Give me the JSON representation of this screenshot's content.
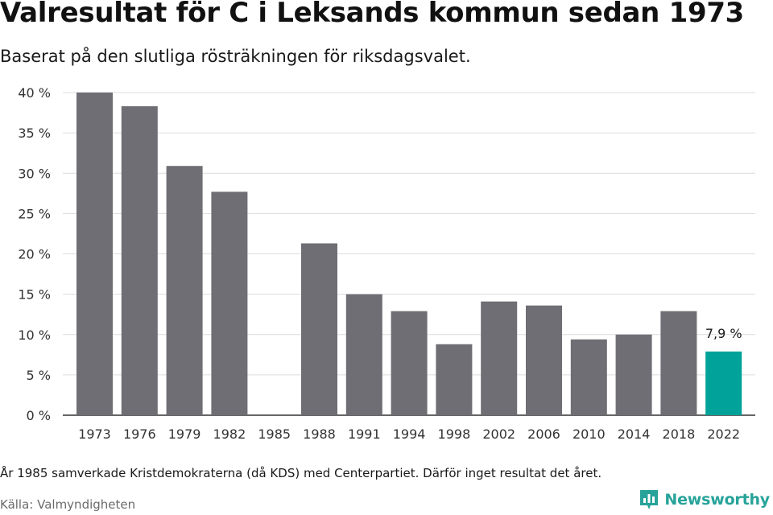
{
  "title": "Valresultat för C i Leksands kommun sedan 1973",
  "subtitle": "Baserat på den slutliga rösträkningen för riksdagsvalet.",
  "footnote": "År 1985 samverkade Kristdemokraterna (då KDS) med Centerpartiet. Därför inget resultat det året.",
  "source": "Källa: Valmyndigheten",
  "brand": {
    "name": "Newsworthy",
    "color": "#27a39a",
    "icon": "newsworthy-logo-icon"
  },
  "colors": {
    "bar": "#6f6e74",
    "highlight": "#00a29a",
    "grid": "#dcdcdc",
    "axis": "#333333"
  },
  "chart_data": {
    "type": "bar",
    "categories": [
      "1973",
      "1976",
      "1979",
      "1982",
      "1985",
      "1988",
      "1991",
      "1994",
      "1998",
      "2002",
      "2006",
      "2010",
      "2014",
      "2018",
      "2022"
    ],
    "values": [
      40.0,
      38.3,
      30.9,
      27.7,
      null,
      21.3,
      15.0,
      12.9,
      8.8,
      14.1,
      13.6,
      9.4,
      10.0,
      12.9,
      7.9
    ],
    "highlight_category": "2022",
    "data_labels": {
      "2022": "7,9 %"
    },
    "yticks": [
      0,
      5,
      10,
      15,
      20,
      25,
      30,
      35,
      40
    ],
    "ytick_labels": [
      "0 %",
      "5 %",
      "10 %",
      "15 %",
      "20 %",
      "25 %",
      "30 %",
      "35 %",
      "40 %"
    ],
    "ylim": [
      0,
      40
    ],
    "xlabel": "",
    "ylabel": "",
    "grid": true
  }
}
